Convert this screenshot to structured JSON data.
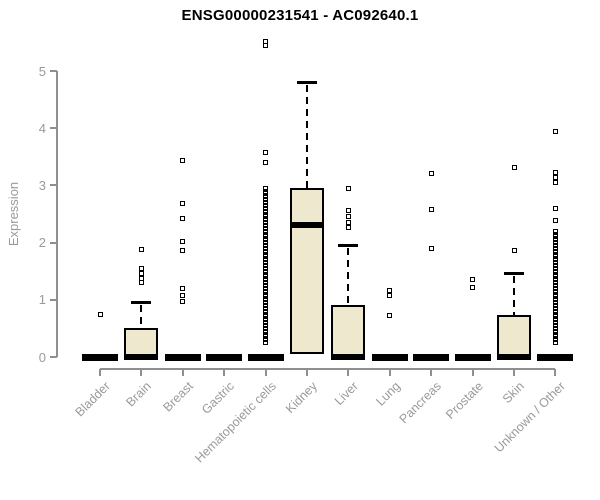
{
  "chart_data": {
    "type": "boxplot",
    "title": "ENSG00000231541 - AC092640.1",
    "xlabel": "",
    "ylabel": "Expression",
    "ylim": [
      0,
      5.6
    ],
    "yticks": [
      0,
      1,
      2,
      3,
      4,
      5
    ],
    "grid": false,
    "legend": "none",
    "colors": {
      "box_fill": "#ede8ce",
      "box_stroke": "#000000",
      "axis_line": "#8f8f8f",
      "axis_text": "#9a9a9a",
      "title_text": "#000000"
    },
    "categories": [
      "Bladder",
      "Brain",
      "Breast",
      "Gastric",
      "Hematopoietic cells",
      "Kidney",
      "Liver",
      "Lung",
      "Pancreas",
      "Prostate",
      "Skin",
      "Unknown / Other"
    ],
    "boxes": [
      {
        "category": "Bladder",
        "q1": 0,
        "median": 0,
        "q3": 0,
        "whisker_low": 0,
        "whisker_high": 0,
        "outliers": [
          0.75
        ]
      },
      {
        "category": "Brain",
        "q1": 0,
        "median": 0,
        "q3": 0.5,
        "whisker_low": 0,
        "whisker_high": 0.96,
        "outliers": [
          1.3,
          1.38,
          1.46,
          1.54,
          1.88
        ]
      },
      {
        "category": "Breast",
        "q1": 0,
        "median": 0,
        "q3": 0,
        "whisker_low": 0,
        "whisker_high": 0,
        "outliers": [
          0.97,
          1.08,
          1.2,
          1.87,
          2.02,
          2.43,
          2.68,
          3.43
        ]
      },
      {
        "category": "Gastric",
        "q1": 0,
        "median": 0,
        "q3": 0,
        "whisker_low": 0,
        "whisker_high": 0,
        "outliers": []
      },
      {
        "category": "Hematopoietic cells",
        "q1": 0,
        "median": 0,
        "q3": 0,
        "whisker_low": 0,
        "whisker_high": 0,
        "outliers": [
          0.25,
          0.3,
          0.35,
          0.4,
          0.45,
          0.5,
          0.55,
          0.6,
          0.65,
          0.7,
          0.75,
          0.8,
          0.85,
          0.9,
          0.95,
          1,
          1.05,
          1.1,
          1.15,
          1.2,
          1.25,
          1.3,
          1.35,
          1.4,
          1.45,
          1.5,
          1.55,
          1.6,
          1.65,
          1.7,
          1.75,
          1.8,
          1.85,
          1.9,
          1.95,
          2,
          2.05,
          2.1,
          2.15,
          2.2,
          2.25,
          2.3,
          2.35,
          2.4,
          2.45,
          2.5,
          2.55,
          2.6,
          2.65,
          2.7,
          2.75,
          2.8,
          2.85,
          2.9,
          2.95,
          3.4,
          3.58,
          5.44,
          5.52
        ]
      },
      {
        "category": "Kidney",
        "q1": 0.05,
        "median": 2.31,
        "q3": 2.95,
        "whisker_low": 0.05,
        "whisker_high": 4.81,
        "outliers": []
      },
      {
        "category": "Liver",
        "q1": 0,
        "median": 0,
        "q3": 0.91,
        "whisker_low": 0,
        "whisker_high": 1.95,
        "outliers": [
          2.26,
          2.36,
          2.46,
          2.56,
          2.95
        ]
      },
      {
        "category": "Lung",
        "q1": 0,
        "median": 0,
        "q3": 0,
        "whisker_low": 0,
        "whisker_high": 0,
        "outliers": [
          0.72,
          1.07,
          1.16
        ]
      },
      {
        "category": "Pancreas",
        "q1": 0,
        "median": 0,
        "q3": 0,
        "whisker_low": 0,
        "whisker_high": 0,
        "outliers": [
          1.9,
          2.57,
          3.2
        ]
      },
      {
        "category": "Prostate",
        "q1": 0,
        "median": 0,
        "q3": 0,
        "whisker_low": 0,
        "whisker_high": 0,
        "outliers": [
          1.22,
          1.35
        ]
      },
      {
        "category": "Skin",
        "q1": 0,
        "median": 0,
        "q3": 0.73,
        "whisker_low": 0,
        "whisker_high": 1.46,
        "outliers": [
          1.87,
          3.32
        ]
      },
      {
        "category": "Unknown / Other",
        "q1": 0,
        "median": 0,
        "q3": 0,
        "whisker_low": 0,
        "whisker_high": 0,
        "outliers": [
          0.26,
          0.3,
          0.35,
          0.4,
          0.45,
          0.5,
          0.55,
          0.6,
          0.65,
          0.7,
          0.75,
          0.8,
          0.85,
          0.9,
          0.95,
          1,
          1.05,
          1.1,
          1.15,
          1.2,
          1.25,
          1.3,
          1.35,
          1.4,
          1.45,
          1.5,
          1.55,
          1.6,
          1.65,
          1.7,
          1.75,
          1.8,
          1.85,
          1.9,
          1.95,
          2,
          2.05,
          2.1,
          2.15,
          2.2,
          2.38,
          2.6,
          3.05,
          3.14,
          3.22,
          3.95
        ]
      }
    ]
  }
}
